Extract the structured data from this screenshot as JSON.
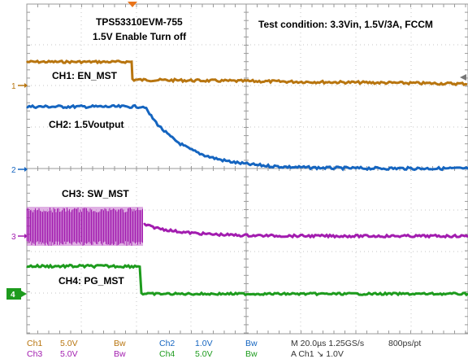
{
  "header": {
    "title": "TPS53310EVM-755",
    "subtitle": "1.5V Enable Turn off",
    "condition": "Test condition: 3.3Vin, 1.5V/3A, FCCM"
  },
  "channels": [
    {
      "label": "CH1: EN_MST",
      "marker": "1",
      "color": "#b8750f"
    },
    {
      "label": "CH2: 1.5Voutput",
      "marker": "2",
      "color": "#1565c0"
    },
    {
      "label": "CH3: SW_MST",
      "marker": "3",
      "color": "#a21caf"
    },
    {
      "label": "CH4: PG_MST",
      "marker": "4",
      "color": "#1d9b1d"
    }
  ],
  "status_bar": {
    "row1": [
      {
        "text": "Ch1",
        "color": "#b8750f"
      },
      {
        "text": "5.0V",
        "color": "#b8750f"
      },
      {
        "text": "Bw",
        "color": "#b8750f"
      },
      {
        "text": "Ch2",
        "color": "#1565c0"
      },
      {
        "text": "1.0V",
        "color": "#1565c0"
      },
      {
        "text": "Bw",
        "color": "#1565c0"
      },
      {
        "text": "M 20.0µs 1.25GS/s",
        "color": "#333333"
      },
      {
        "text": "800ps/pt",
        "color": "#333333"
      }
    ],
    "row2": [
      {
        "text": "Ch3",
        "color": "#a21caf"
      },
      {
        "text": "5.0V",
        "color": "#a21caf"
      },
      {
        "text": "Bw",
        "color": "#a21caf"
      },
      {
        "text": "Ch4",
        "color": "#1d9b1d"
      },
      {
        "text": "5.0V",
        "color": "#1d9b1d"
      },
      {
        "text": "Bw",
        "color": "#1d9b1d"
      },
      {
        "text": "A  Ch1  ↘  1.0V",
        "color": "#333333"
      }
    ]
  }
}
